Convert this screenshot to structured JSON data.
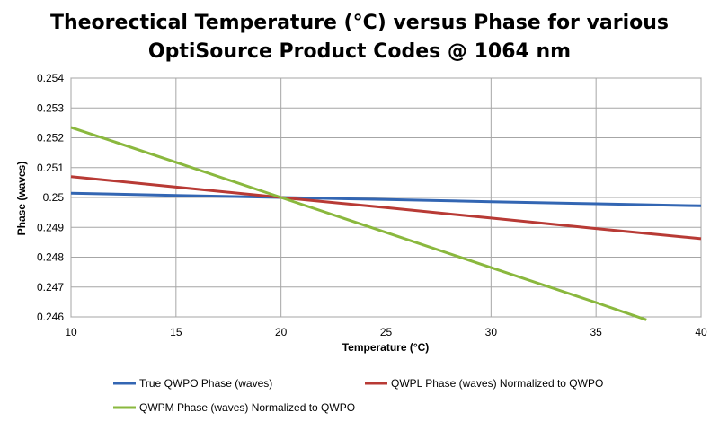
{
  "chart_data": {
    "type": "line",
    "title": [
      "Theorectical Temperature (°C) versus Phase for various",
      "OptiSource Product Codes @ 1064 nm"
    ],
    "xlabel": "Temperature (°C)",
    "ylabel": "Phase (waves)",
    "xlim": [
      10,
      40
    ],
    "ylim": [
      0.246,
      0.254
    ],
    "x_ticks": [
      10,
      15,
      20,
      25,
      30,
      35,
      40
    ],
    "x_tick_labels": [
      "10",
      "15",
      "20",
      "25",
      "30",
      "35",
      "40"
    ],
    "y_ticks": [
      0.246,
      0.247,
      0.248,
      0.249,
      0.25,
      0.251,
      0.252,
      0.253,
      0.254
    ],
    "y_tick_labels": [
      "0.246",
      "0.247",
      "0.248",
      "0.249",
      "0.25",
      "0.251",
      "0.252",
      "0.253",
      "0.254"
    ],
    "grid": true,
    "legend_position": "bottom",
    "series": [
      {
        "name": "True QWPO Phase (waves)",
        "color": "#3366b3",
        "x": [
          10,
          15,
          20,
          25,
          30,
          35,
          40
        ],
        "values": [
          0.25014,
          0.25007,
          0.25,
          0.24993,
          0.24986,
          0.24979,
          0.24972
        ]
      },
      {
        "name": "QWPL Phase (waves) Normalized to QWPO",
        "color": "#b83a35",
        "x": [
          10,
          15,
          20,
          25,
          30,
          35,
          40
        ],
        "values": [
          0.2507,
          0.25035,
          0.25,
          0.24966,
          0.24931,
          0.24896,
          0.24862
        ]
      },
      {
        "name": "QWPM Phase (waves) Normalized to QWPO",
        "color": "#8ab83e",
        "x": [
          10,
          15,
          20,
          25,
          30,
          35,
          37.4
        ],
        "values": [
          0.25235,
          0.25118,
          0.25,
          0.24883,
          0.24765,
          0.24648,
          0.2459
        ]
      }
    ]
  }
}
